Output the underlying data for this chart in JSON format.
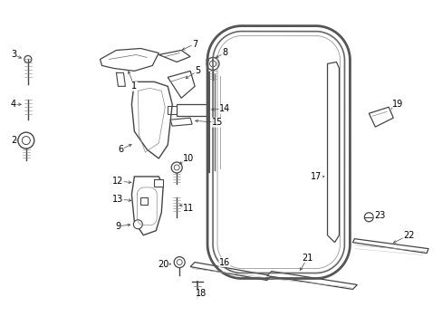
{
  "background_color": "#ffffff",
  "fig_width": 4.89,
  "fig_height": 3.6,
  "dpi": 100,
  "line_color": "#444444",
  "label_color": "#000000",
  "label_fontsize": 7.0
}
